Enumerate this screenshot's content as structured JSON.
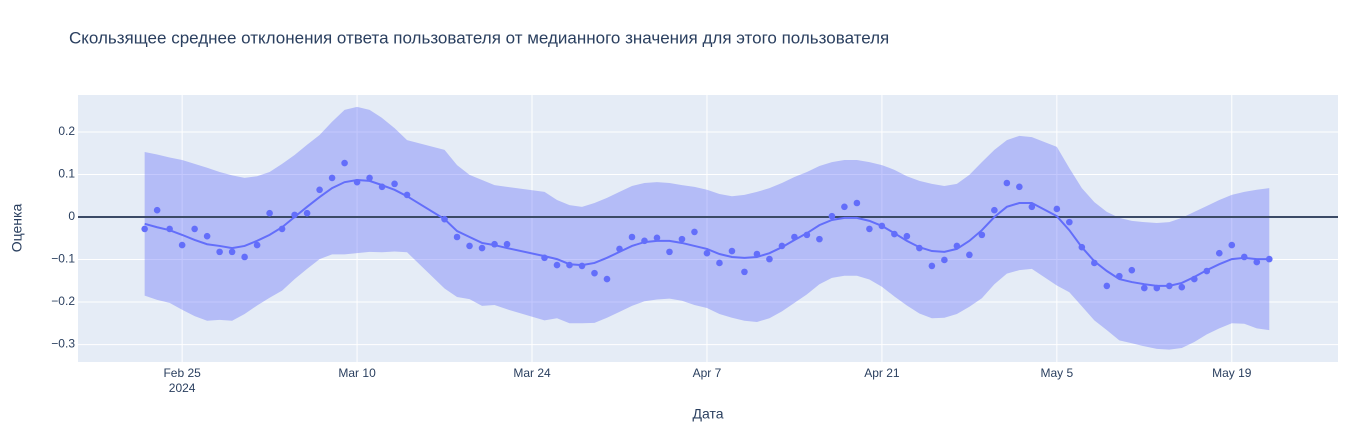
{
  "chart_data": {
    "type": "line",
    "title": "Скользящее среднее отклонения ответа пользователя от медианного значения для этого пользователя",
    "x_label": "Дата",
    "y_label": "Оценка",
    "x": [
      "2024-02-22",
      "2024-02-23",
      "2024-02-24",
      "2024-02-25",
      "2024-02-26",
      "2024-02-27",
      "2024-02-28",
      "2024-02-29",
      "2024-03-01",
      "2024-03-02",
      "2024-03-03",
      "2024-03-04",
      "2024-03-05",
      "2024-03-06",
      "2024-03-07",
      "2024-03-08",
      "2024-03-09",
      "2024-03-10",
      "2024-03-11",
      "2024-03-12",
      "2024-03-13",
      "2024-03-14",
      "2024-03-17",
      "2024-03-18",
      "2024-03-19",
      "2024-03-20",
      "2024-03-21",
      "2024-03-22",
      "2024-03-25",
      "2024-03-26",
      "2024-03-27",
      "2024-03-28",
      "2024-03-29",
      "2024-03-30",
      "2024-03-31",
      "2024-04-01",
      "2024-04-02",
      "2024-04-03",
      "2024-04-04",
      "2024-04-05",
      "2024-04-06",
      "2024-04-07",
      "2024-04-08",
      "2024-04-09",
      "2024-04-10",
      "2024-04-11",
      "2024-04-12",
      "2024-04-13",
      "2024-04-14",
      "2024-04-15",
      "2024-04-16",
      "2024-04-17",
      "2024-04-18",
      "2024-04-19",
      "2024-04-20",
      "2024-04-21",
      "2024-04-22",
      "2024-04-23",
      "2024-04-24",
      "2024-04-25",
      "2024-04-26",
      "2024-04-27",
      "2024-04-28",
      "2024-04-29",
      "2024-04-30",
      "2024-05-01",
      "2024-05-02",
      "2024-05-03",
      "2024-05-05",
      "2024-05-06",
      "2024-05-07",
      "2024-05-08",
      "2024-05-09",
      "2024-05-10",
      "2024-05-11",
      "2024-05-12",
      "2024-05-13",
      "2024-05-14",
      "2024-05-15",
      "2024-05-16",
      "2024-05-17",
      "2024-05-18",
      "2024-05-19",
      "2024-05-20",
      "2024-05-21",
      "2024-05-22"
    ],
    "series": [
      {
        "mode": "band",
        "color": "rgba(99,110,250,0.38)",
        "upper": [
          0.153,
          0.147,
          0.14,
          0.134,
          0.125,
          0.116,
          0.106,
          0.098,
          0.092,
          0.096,
          0.106,
          0.125,
          0.146,
          0.17,
          0.193,
          0.224,
          0.252,
          0.259,
          0.252,
          0.233,
          0.209,
          0.181,
          0.158,
          0.122,
          0.099,
          0.087,
          0.075,
          0.071,
          0.059,
          0.04,
          0.028,
          0.024,
          0.033,
          0.045,
          0.059,
          0.073,
          0.08,
          0.082,
          0.08,
          0.075,
          0.071,
          0.064,
          0.054,
          0.049,
          0.052,
          0.059,
          0.068,
          0.08,
          0.094,
          0.106,
          0.12,
          0.129,
          0.134,
          0.134,
          0.129,
          0.122,
          0.111,
          0.096,
          0.085,
          0.078,
          0.073,
          0.078,
          0.099,
          0.129,
          0.158,
          0.181,
          0.191,
          0.188,
          0.165,
          0.115,
          0.068,
          0.035,
          0.012,
          -0.002,
          -0.009,
          -0.012,
          -0.014,
          -0.012,
          -0.002,
          0.012,
          0.026,
          0.04,
          0.052,
          0.059,
          0.064,
          0.068
        ],
        "lower": [
          -0.185,
          -0.195,
          -0.202,
          -0.218,
          -0.233,
          -0.244,
          -0.242,
          -0.244,
          -0.228,
          -0.208,
          -0.19,
          -0.173,
          -0.146,
          -0.122,
          -0.099,
          -0.088,
          -0.088,
          -0.085,
          -0.082,
          -0.083,
          -0.081,
          -0.083,
          -0.168,
          -0.188,
          -0.193,
          -0.209,
          -0.207,
          -0.217,
          -0.243,
          -0.238,
          -0.25,
          -0.25,
          -0.249,
          -0.237,
          -0.223,
          -0.209,
          -0.198,
          -0.194,
          -0.192,
          -0.197,
          -0.207,
          -0.214,
          -0.228,
          -0.237,
          -0.244,
          -0.247,
          -0.238,
          -0.222,
          -0.202,
          -0.182,
          -0.158,
          -0.143,
          -0.138,
          -0.138,
          -0.147,
          -0.164,
          -0.187,
          -0.208,
          -0.227,
          -0.238,
          -0.237,
          -0.228,
          -0.211,
          -0.191,
          -0.158,
          -0.133,
          -0.125,
          -0.122,
          -0.161,
          -0.177,
          -0.21,
          -0.243,
          -0.266,
          -0.29,
          -0.297,
          -0.304,
          -0.31,
          -0.312,
          -0.308,
          -0.294,
          -0.276,
          -0.262,
          -0.25,
          -0.251,
          -0.262,
          -0.266
        ]
      },
      {
        "mode": "lines",
        "color": "#636efa",
        "values": [
          -0.016,
          -0.024,
          -0.031,
          -0.042,
          -0.054,
          -0.064,
          -0.068,
          -0.073,
          -0.068,
          -0.056,
          -0.042,
          -0.024,
          0,
          0.024,
          0.047,
          0.068,
          0.082,
          0.087,
          0.085,
          0.075,
          0.064,
          0.049,
          -0.005,
          -0.033,
          -0.047,
          -0.061,
          -0.066,
          -0.073,
          -0.092,
          -0.099,
          -0.111,
          -0.113,
          -0.108,
          -0.096,
          -0.082,
          -0.068,
          -0.059,
          -0.056,
          -0.056,
          -0.061,
          -0.068,
          -0.075,
          -0.087,
          -0.094,
          -0.096,
          -0.094,
          -0.085,
          -0.071,
          -0.054,
          -0.038,
          -0.019,
          -0.007,
          -0.002,
          -0.002,
          -0.009,
          -0.021,
          -0.038,
          -0.056,
          -0.071,
          -0.08,
          -0.082,
          -0.075,
          -0.056,
          -0.031,
          0,
          0.024,
          0.033,
          0.033,
          0.002,
          -0.031,
          -0.071,
          -0.104,
          -0.127,
          -0.146,
          -0.153,
          -0.158,
          -0.162,
          -0.162,
          -0.155,
          -0.141,
          -0.125,
          -0.111,
          -0.099,
          -0.096,
          -0.099,
          -0.099
        ]
      },
      {
        "mode": "markers",
        "color": "#636efa",
        "values": [
          -0.028,
          0.016,
          -0.028,
          -0.066,
          -0.028,
          -0.045,
          -0.082,
          -0.082,
          -0.094,
          -0.066,
          0.009,
          -0.028,
          0.005,
          0.009,
          0.064,
          0.092,
          0.127,
          0.082,
          0.092,
          0.071,
          0.078,
          0.052,
          -0.005,
          -0.047,
          -0.068,
          -0.073,
          -0.064,
          -0.064,
          -0.096,
          -0.113,
          -0.113,
          -0.115,
          -0.132,
          -0.146,
          -0.075,
          -0.047,
          -0.056,
          -0.049,
          -0.082,
          -0.052,
          -0.035,
          -0.085,
          -0.108,
          -0.08,
          -0.129,
          -0.087,
          -0.099,
          -0.068,
          -0.047,
          -0.042,
          -0.052,
          0.002,
          0.024,
          0.033,
          -0.028,
          -0.021,
          -0.04,
          -0.045,
          -0.073,
          -0.115,
          -0.101,
          -0.068,
          -0.089,
          -0.042,
          0.016,
          0.08,
          0.071,
          0.024,
          0.019,
          -0.012,
          -0.071,
          -0.108,
          -0.162,
          -0.139,
          -0.125,
          -0.167,
          -0.167,
          -0.162,
          -0.165,
          -0.146,
          -0.127,
          -0.085,
          -0.066,
          -0.094,
          -0.106,
          -0.099
        ]
      }
    ],
    "zeroline": {
      "value": 0,
      "color": "#3b4a66"
    },
    "xlim": [
      "2024-02-16T16:00",
      "2024-05-27T12:00"
    ],
    "xticks": [
      {
        "value": "2024-02-25",
        "label": "Feb 25"
      },
      {
        "value": "2024-03-10",
        "label": "Mar 10"
      },
      {
        "value": "2024-03-24",
        "label": "Mar 24"
      },
      {
        "value": "2024-04-07",
        "label": "Apr 7"
      },
      {
        "value": "2024-04-21",
        "label": "Apr 21"
      },
      {
        "value": "2024-05-05",
        "label": "May 5"
      },
      {
        "value": "2024-05-19",
        "label": "May 19"
      }
    ],
    "x_year": "2024",
    "ylim": [
      -0.341,
      0.287
    ],
    "yticks": [
      0.2,
      0.1,
      0,
      {
        "value": -0.1,
        "label": "−0.1"
      },
      {
        "value": -0.2,
        "label": "−0.2"
      },
      {
        "value": -0.3,
        "label": "−0.3"
      }
    ],
    "grid": true,
    "background": "#e5ecf6"
  }
}
